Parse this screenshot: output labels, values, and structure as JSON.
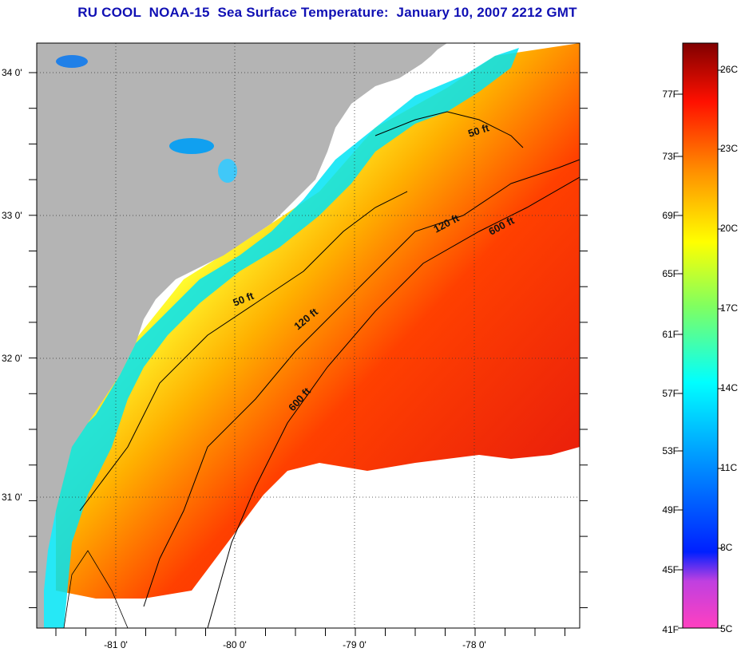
{
  "title": "RU COOL  NOAA-15  Sea Surface Temperature:  January 10, 2007 2212 GMT",
  "map": {
    "lat_labels": [
      "34 0'",
      "33 0'",
      "32 0'",
      "31 0'"
    ],
    "lon_labels": [
      "-81 0'",
      "-80 0'",
      "-79 0'",
      "-78 0'"
    ],
    "contour_labels": [
      {
        "text": "50 ft",
        "x": 0,
        "y": 0
      },
      {
        "text": "120 ft"
      },
      {
        "text": "600 ft"
      },
      {
        "text": "50 ft"
      },
      {
        "text": "120 ft"
      },
      {
        "text": "600 ft"
      }
    ],
    "colors": {
      "land": "#b4b4b4",
      "no_data": "#ffffff",
      "warm": "#e01010",
      "cool": "#00e4f4",
      "cold": "#0020e0"
    }
  },
  "colorbar": {
    "fahrenheit_labels": [
      "77F",
      "73F",
      "69F",
      "65F",
      "61F",
      "57F",
      "53F",
      "49F",
      "45F",
      "41F"
    ],
    "celsius_labels": [
      "26C",
      "23C",
      "20C",
      "17C",
      "14C",
      "11C",
      "8C",
      "5C"
    ]
  }
}
